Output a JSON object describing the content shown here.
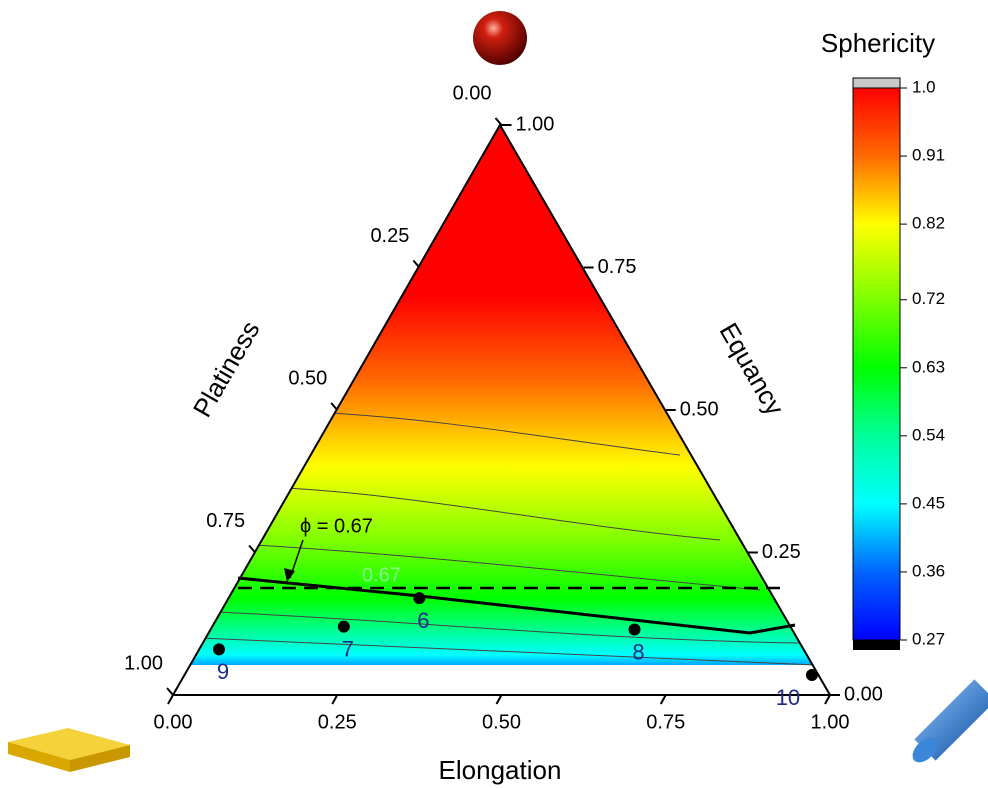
{
  "chart_data": {
    "type": "ternary",
    "bottom_axis": {
      "label": "Elongation",
      "ticks": [
        {
          "value": 0,
          "label": "0.00"
        },
        {
          "value": 0.25,
          "label": "0.25"
        },
        {
          "value": 0.5,
          "label": "0.50"
        },
        {
          "value": 0.75,
          "label": "0.75"
        },
        {
          "value": 1,
          "label": "1.00"
        }
      ]
    },
    "right_axis": {
      "label": "Equancy",
      "ticks": [
        {
          "value": 0,
          "label": "0.00"
        },
        {
          "value": 0.25,
          "label": "0.25"
        },
        {
          "value": 0.5,
          "label": "0.50"
        },
        {
          "value": 0.75,
          "label": "0.75"
        },
        {
          "value": 1,
          "label": "1.00"
        }
      ]
    },
    "left_axis": {
      "label": "Platiness",
      "ticks": [
        {
          "value": 0,
          "label": "0.00"
        },
        {
          "value": 0.25,
          "label": "0.25"
        },
        {
          "value": 0.5,
          "label": "0.50"
        },
        {
          "value": 0.75,
          "label": "0.75"
        },
        {
          "value": 1,
          "label": "1.00"
        }
      ]
    },
    "points": {
      "labels": [
        "6",
        "7",
        "8",
        "9",
        "10"
      ],
      "elongation": [
        0.29,
        0.2,
        0.645,
        0.03,
        0.955
      ],
      "equancy": [
        0.17,
        0.12,
        0.115,
        0.08,
        0.035
      ],
      "color": "#000000"
    },
    "colorbar": {
      "title": "Sphericity",
      "ticks": [
        {
          "value": 1,
          "label": "1.0"
        },
        0.91,
        0.82,
        0.72,
        0.63,
        0.54,
        0.45,
        0.36,
        0.27
      ],
      "colors": [
        "#ff0000",
        "#ff6a00",
        "#ffff00",
        "#7dff00",
        "#00ff00",
        "#00ff9a",
        "#00ffff",
        "#0064ff",
        "#0000ff"
      ]
    },
    "annotation": "ϕ = 0.67",
    "contour_label": "0.67"
  }
}
